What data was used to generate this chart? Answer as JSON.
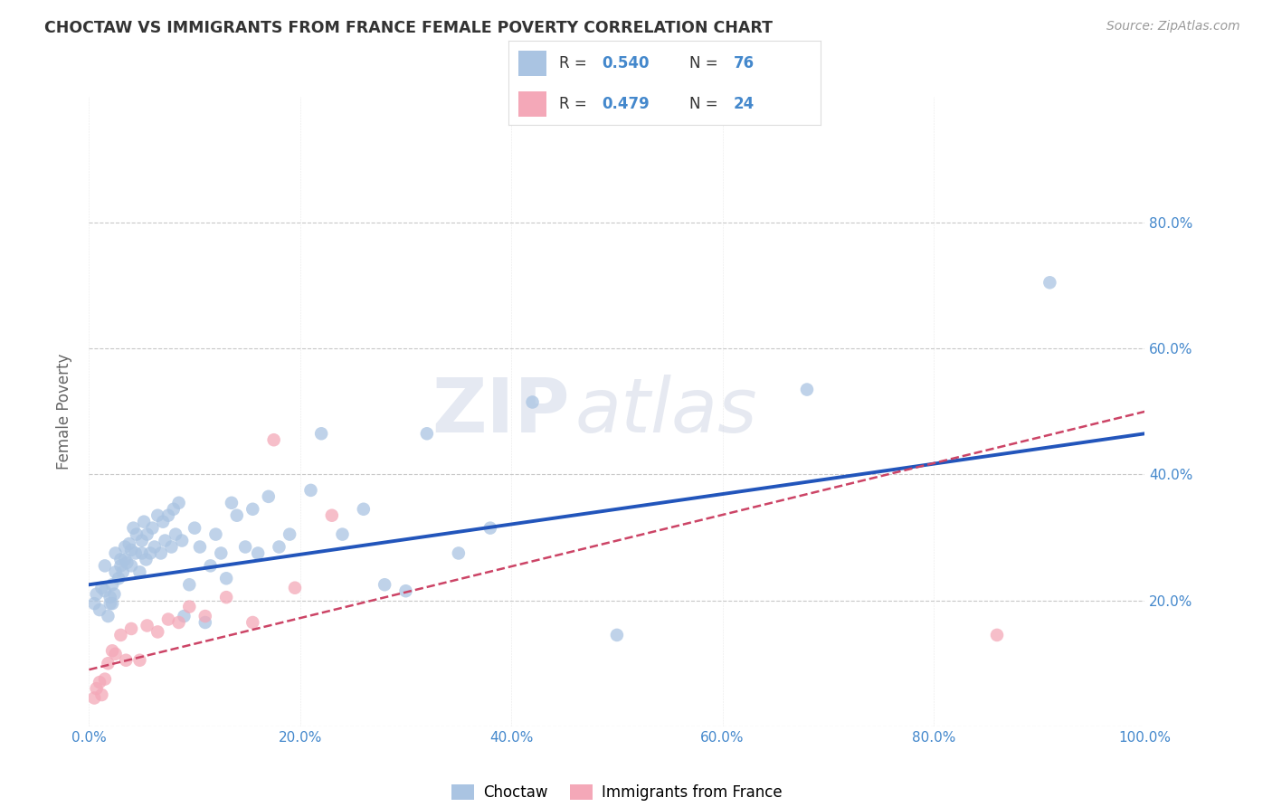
{
  "title": "CHOCTAW VS IMMIGRANTS FROM FRANCE FEMALE POVERTY CORRELATION CHART",
  "source": "Source: ZipAtlas.com",
  "ylabel": "Female Poverty",
  "xlim": [
    0,
    1.0
  ],
  "ylim": [
    0,
    1.0
  ],
  "xticks": [
    0.0,
    0.2,
    0.4,
    0.6,
    0.8,
    1.0
  ],
  "xticklabels": [
    "0.0%",
    "20.0%",
    "40.0%",
    "60.0%",
    "80.0%",
    "100.0%"
  ],
  "yticks": [
    0.0,
    0.2,
    0.4,
    0.6,
    0.8
  ],
  "yticklabels_right": [
    "",
    "20.0%",
    "40.0%",
    "60.0%",
    "80.0%"
  ],
  "choctaw_R": 0.54,
  "choctaw_N": 76,
  "france_R": 0.479,
  "france_N": 24,
  "choctaw_color": "#aac4e2",
  "france_color": "#f4a8b8",
  "choctaw_line_color": "#2255bb",
  "france_line_color": "#cc4466",
  "background_color": "#ffffff",
  "grid_color": "#c8c8c8",
  "tick_label_color": "#4488cc",
  "watermark_text": "ZIPatlas",
  "legend_box_color": "#ffffff",
  "choctaw_x": [
    0.005,
    0.007,
    0.01,
    0.012,
    0.015,
    0.015,
    0.018,
    0.02,
    0.02,
    0.022,
    0.022,
    0.024,
    0.025,
    0.025,
    0.028,
    0.03,
    0.03,
    0.032,
    0.034,
    0.034,
    0.036,
    0.038,
    0.04,
    0.04,
    0.042,
    0.044,
    0.045,
    0.048,
    0.05,
    0.05,
    0.052,
    0.054,
    0.055,
    0.058,
    0.06,
    0.062,
    0.065,
    0.068,
    0.07,
    0.072,
    0.075,
    0.078,
    0.08,
    0.082,
    0.085,
    0.088,
    0.09,
    0.095,
    0.1,
    0.105,
    0.11,
    0.115,
    0.12,
    0.125,
    0.13,
    0.135,
    0.14,
    0.148,
    0.155,
    0.16,
    0.17,
    0.18,
    0.19,
    0.21,
    0.22,
    0.24,
    0.26,
    0.28,
    0.3,
    0.32,
    0.35,
    0.38,
    0.42,
    0.5,
    0.68,
    0.91
  ],
  "choctaw_y": [
    0.195,
    0.21,
    0.185,
    0.22,
    0.215,
    0.255,
    0.175,
    0.195,
    0.205,
    0.225,
    0.195,
    0.21,
    0.245,
    0.275,
    0.235,
    0.255,
    0.265,
    0.245,
    0.265,
    0.285,
    0.26,
    0.29,
    0.255,
    0.28,
    0.315,
    0.275,
    0.305,
    0.245,
    0.275,
    0.295,
    0.325,
    0.265,
    0.305,
    0.275,
    0.315,
    0.285,
    0.335,
    0.275,
    0.325,
    0.295,
    0.335,
    0.285,
    0.345,
    0.305,
    0.355,
    0.295,
    0.175,
    0.225,
    0.315,
    0.285,
    0.165,
    0.255,
    0.305,
    0.275,
    0.235,
    0.355,
    0.335,
    0.285,
    0.345,
    0.275,
    0.365,
    0.285,
    0.305,
    0.375,
    0.465,
    0.305,
    0.345,
    0.225,
    0.215,
    0.465,
    0.275,
    0.315,
    0.515,
    0.145,
    0.535,
    0.705
  ],
  "france_x": [
    0.005,
    0.007,
    0.01,
    0.012,
    0.015,
    0.018,
    0.022,
    0.025,
    0.03,
    0.035,
    0.04,
    0.048,
    0.055,
    0.065,
    0.075,
    0.085,
    0.095,
    0.11,
    0.13,
    0.155,
    0.175,
    0.195,
    0.23,
    0.86
  ],
  "france_y": [
    0.045,
    0.06,
    0.07,
    0.05,
    0.075,
    0.1,
    0.12,
    0.115,
    0.145,
    0.105,
    0.155,
    0.105,
    0.16,
    0.15,
    0.17,
    0.165,
    0.19,
    0.175,
    0.205,
    0.165,
    0.455,
    0.22,
    0.335,
    0.145
  ],
  "choctaw_line_x0": 0.0,
  "choctaw_line_y0": 0.225,
  "choctaw_line_x1": 1.0,
  "choctaw_line_y1": 0.465,
  "france_line_x0": 0.0,
  "france_line_y0": 0.09,
  "france_line_x1": 1.0,
  "france_line_y1": 0.5
}
